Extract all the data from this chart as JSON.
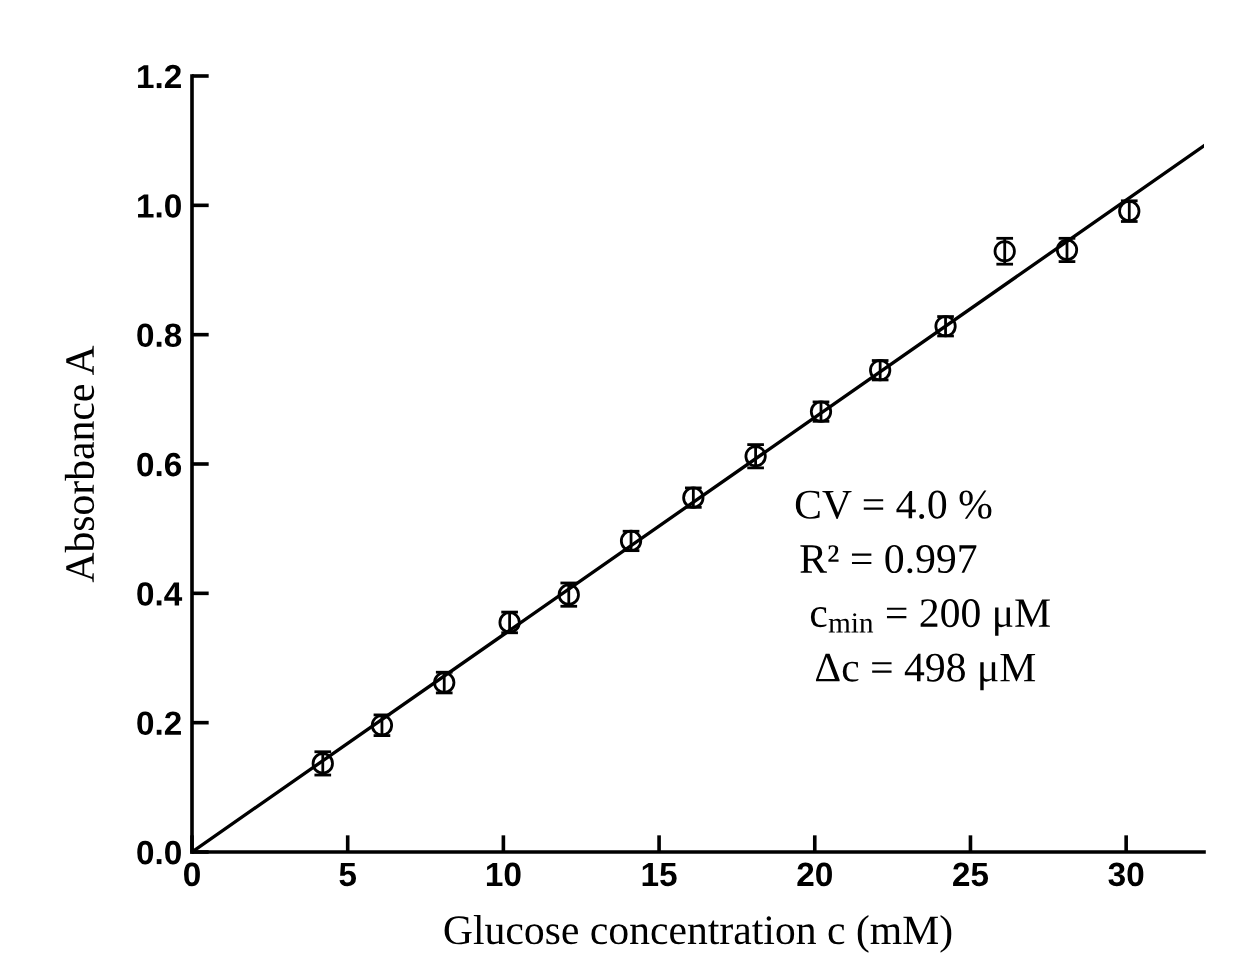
{
  "chart_data": {
    "type": "scatter",
    "xlabel": "Glucose concentration c (mM)",
    "ylabel": "Absorbance A",
    "series": [
      {
        "color": "#000000",
        "marker": "circle",
        "x": [
          4.2,
          6.1,
          8.1,
          10.2,
          12.1,
          14.1,
          16.1,
          18.1,
          20.2,
          22.1,
          24.2,
          26.1,
          28.1,
          30.1
        ],
        "values": [
          0.137,
          0.196,
          0.262,
          0.355,
          0.398,
          0.481,
          0.548,
          0.612,
          0.681,
          0.745,
          0.813,
          0.929,
          0.931,
          0.991
        ],
        "errors": [
          0.018,
          0.016,
          0.016,
          0.016,
          0.018,
          0.015,
          0.015,
          0.018,
          0.015,
          0.015,
          0.015,
          0.02,
          0.018,
          0.016
        ]
      },
      {
        "type": "line",
        "color": "#000000",
        "x": [
          0,
          32.5
        ],
        "values": [
          0,
          1.092
        ]
      }
    ],
    "annotations": [
      {
        "text": "CV = 4.0 %"
      },
      {
        "text": "R² = 0.997"
      },
      {
        "text": "c$_{min}$ = 200 μM"
      },
      {
        "text": "Δc = 498 μM"
      }
    ],
    "xlim": [
      0,
      32.5
    ],
    "ylim": [
      0,
      1.2
    ],
    "xticks": [
      0,
      5,
      10,
      15,
      20,
      25,
      30
    ],
    "yticks": [
      {
        "value": 0,
        "label": "0.0"
      },
      {
        "value": 0.2,
        "label": "0.2"
      },
      {
        "value": 0.4,
        "label": "0.4"
      },
      {
        "value": 0.6,
        "label": "0.6"
      },
      {
        "value": 0.8,
        "label": "0.8"
      },
      {
        "value": 1.0,
        "label": "1.0"
      },
      {
        "value": 1.2,
        "label": "1.2"
      }
    ],
    "grid": false,
    "legend": false
  }
}
